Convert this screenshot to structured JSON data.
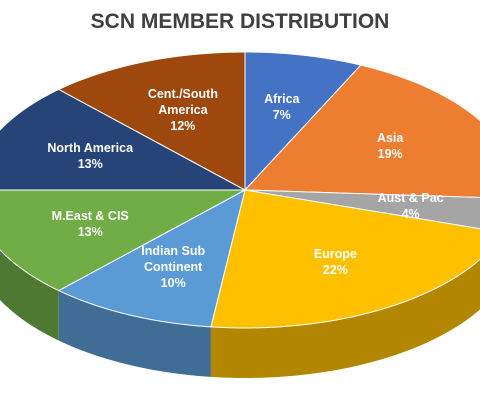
{
  "chart_data": {
    "type": "pie3d",
    "title": "SCN MEMBER DISTRIBUTION",
    "categories": [
      "Africa",
      "Asia",
      "Aust & Pac",
      "Europe",
      "Indian Sub Continent",
      "M.East & CIS",
      "North America",
      "Cent./South America"
    ],
    "values": [
      7,
      19,
      4,
      22,
      10,
      13,
      13,
      12
    ],
    "value_labels": [
      "7%",
      "19%",
      "4%",
      "22%",
      "10%",
      "13%",
      "13%",
      "12%"
    ],
    "colors": [
      "#4472c4",
      "#ed7d31",
      "#a5a5a5",
      "#ffc000",
      "#5b9bd5",
      "#70ad47",
      "#264478",
      "#9e480e"
    ]
  }
}
